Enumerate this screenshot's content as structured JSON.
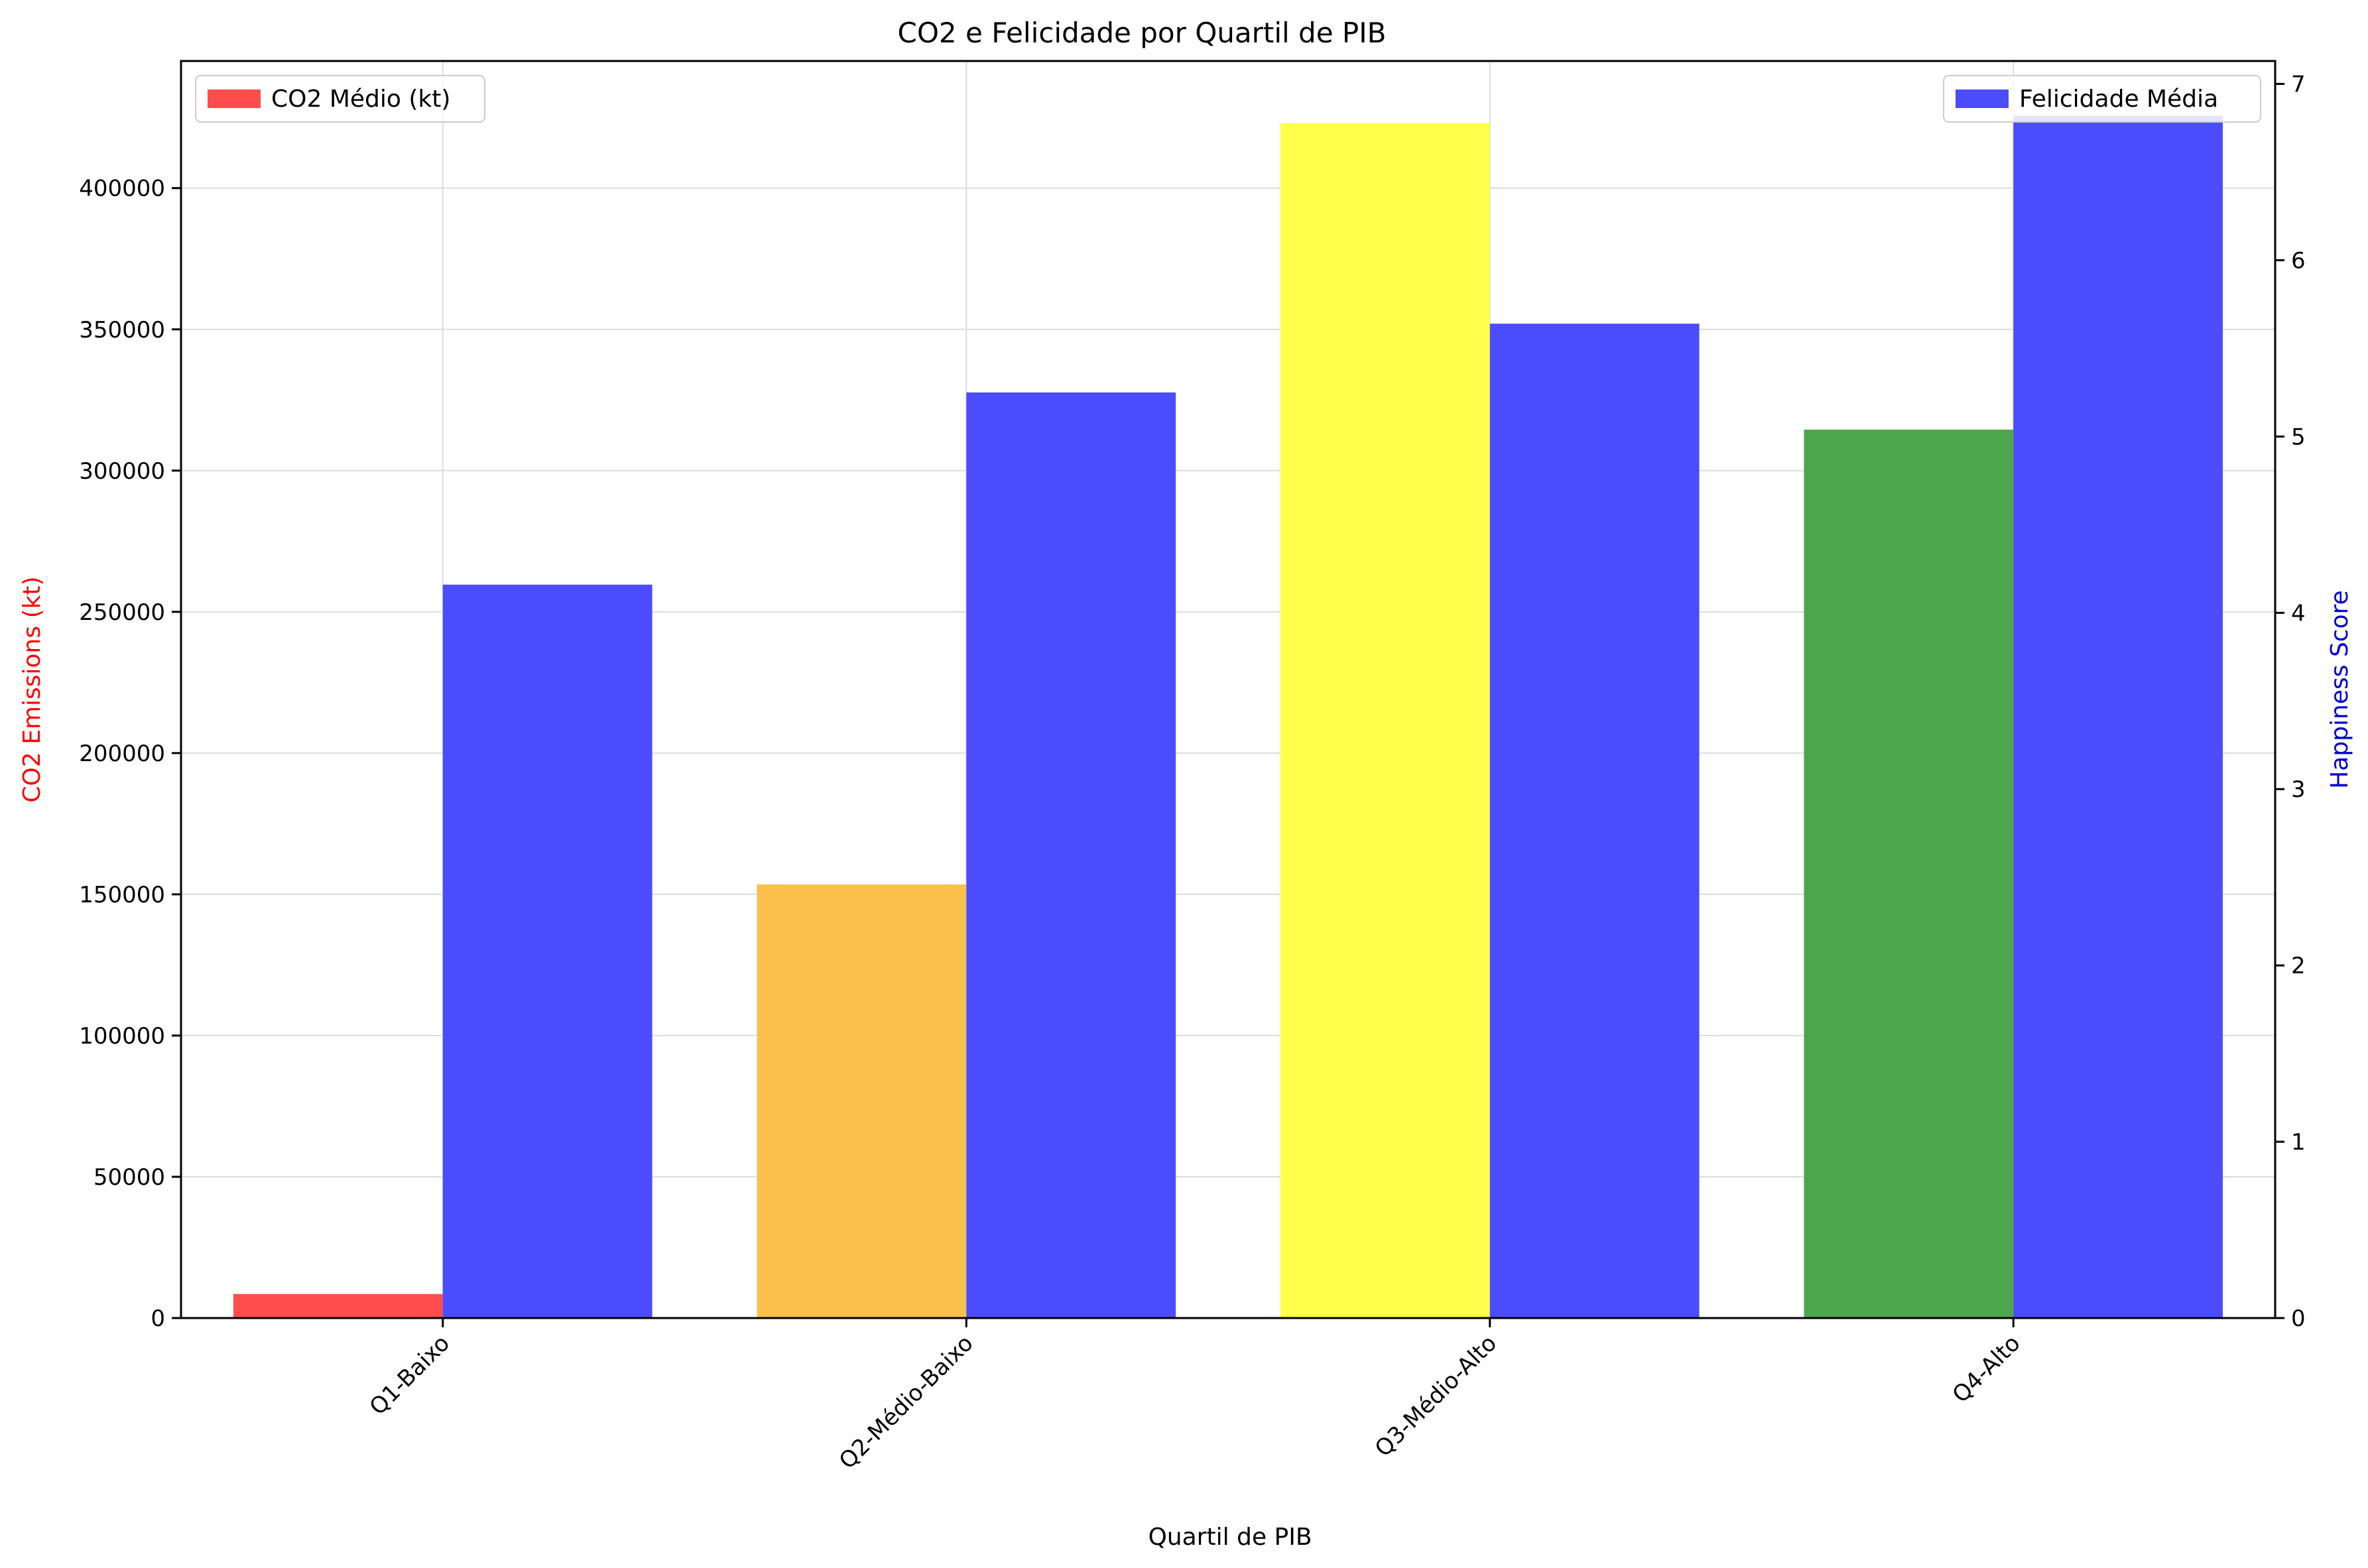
{
  "chart_data": {
    "type": "bar",
    "title": "CO2 e Felicidade por Quartil de PIB",
    "xlabel": "Quartil de PIB",
    "ylabel": "CO2 Emissions (kt)",
    "ylabel_color": "#ff0000",
    "y2label": "Happiness Score",
    "y2label_color": "#0000cc",
    "categories": [
      "Q1-Baixo",
      "Q2-Médio-Baixo",
      "Q3-Médio-Alto",
      "Q4-Alto"
    ],
    "ylim": [
      0,
      445000
    ],
    "y2lim": [
      0,
      7.13
    ],
    "yticks": [
      0,
      50000,
      100000,
      150000,
      200000,
      250000,
      300000,
      350000,
      400000
    ],
    "y2ticks": [
      0,
      1,
      2,
      3,
      4,
      5,
      6,
      7
    ],
    "grid": true,
    "series": [
      {
        "name": "CO2 Médio (kt)",
        "axis": "left",
        "values": [
          8500,
          153500,
          423000,
          314500
        ],
        "colors": [
          "#ff4c4c",
          "#fbbf4c",
          "#ffff4c",
          "#4ca64c"
        ],
        "legend_color": "#ff4c4c",
        "legend_position": "top-left"
      },
      {
        "name": "Felicidade Média",
        "axis": "right",
        "values": [
          4.16,
          5.25,
          5.64,
          6.82
        ],
        "colors": [
          "#4c4cff",
          "#4c4cff",
          "#4c4cff",
          "#4c4cff"
        ],
        "legend_color": "#4c4cff",
        "legend_position": "top-right"
      }
    ]
  }
}
